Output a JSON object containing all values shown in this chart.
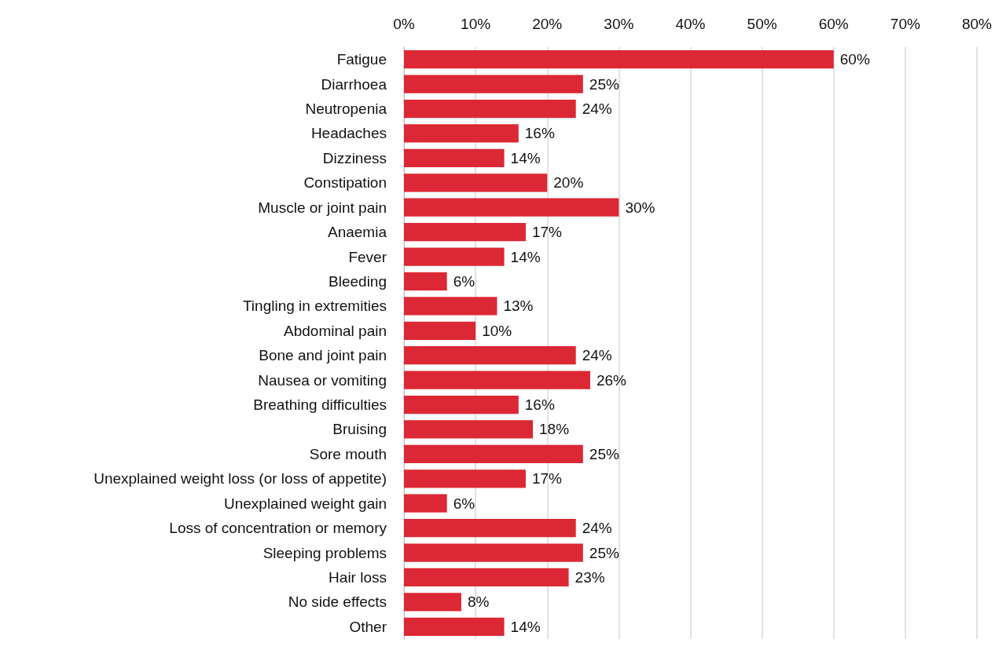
{
  "chart_data": {
    "type": "bar",
    "orientation": "horizontal",
    "categories": [
      "Fatigue",
      "Diarrhoea",
      "Neutropenia",
      "Headaches",
      "Dizziness",
      "Constipation",
      "Muscle or joint pain",
      "Anaemia",
      "Fever",
      "Bleeding",
      "Tingling in extremities",
      "Abdominal pain",
      "Bone and joint pain",
      "Nausea or vomiting",
      "Breathing difficulties",
      "Bruising",
      "Sore mouth",
      "Unexplained weight loss (or loss of appetite)",
      "Unexplained weight gain",
      "Loss of concentration or memory",
      "Sleeping problems",
      "Hair loss",
      "No side effects",
      "Other"
    ],
    "values": [
      60,
      25,
      24,
      16,
      14,
      20,
      30,
      17,
      14,
      6,
      13,
      10,
      24,
      26,
      16,
      18,
      25,
      17,
      6,
      24,
      25,
      23,
      8,
      14
    ],
    "value_labels": [
      "60%",
      "25%",
      "24%",
      "16%",
      "14%",
      "20%",
      "30%",
      "17%",
      "14%",
      "6%",
      "13%",
      "10%",
      "24%",
      "26%",
      "16%",
      "18%",
      "25%",
      "17%",
      "6%",
      "24%",
      "25%",
      "23%",
      "8%",
      "14%"
    ],
    "color": "#dc2834",
    "xlim": [
      0,
      80
    ],
    "xticks": [
      {
        "value": 0,
        "label": "0%"
      },
      {
        "value": 10,
        "label": "10%"
      },
      {
        "value": 20,
        "label": "20%"
      },
      {
        "value": 30,
        "label": "30%"
      },
      {
        "value": 40,
        "label": "40%"
      },
      {
        "value": 50,
        "label": "50%"
      },
      {
        "value": 60,
        "label": "60%"
      },
      {
        "value": 70,
        "label": "70%"
      },
      {
        "value": 80,
        "label": "80%"
      }
    ],
    "grid": "x"
  }
}
